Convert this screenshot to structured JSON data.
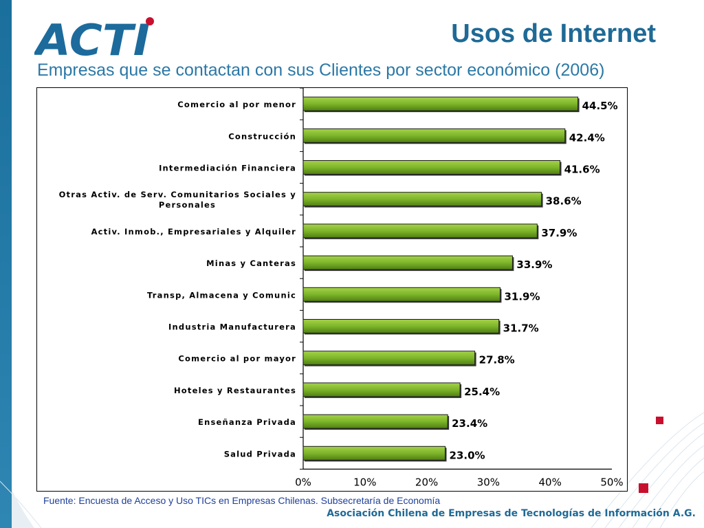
{
  "slide": {
    "logo_text": "ACTI",
    "title": "Usos de Internet",
    "subtitle": "Empresas que se contactan con sus Clientes por sector económico (2006)",
    "source": "Fuente: Encuesta de Acceso y Uso TICs en Empresas Chilenas. Subsecretaría de Economía",
    "footer": "Asociación Chilena de Empresas de Tecnologías de Información A.G.",
    "colors": {
      "brand_blue": "#1f6a96",
      "bar_green": "#7db52a",
      "accent_red": "#c8102e"
    }
  },
  "chart_data": {
    "type": "bar",
    "orientation": "horizontal",
    "categories": [
      "Comercio al por menor",
      "Construcción",
      "Intermediación Financiera",
      "Otras Activ. de Serv. Comunitarios Sociales y Personales",
      "Activ. Inmob., Empresariales y Alquiler",
      "Minas y Canteras",
      "Transp, Almacena y Comunic",
      "Industria Manufacturera",
      "Comercio al por mayor",
      "Hoteles y Restaurantes",
      "Enseñanza Privada",
      "Salud Privada"
    ],
    "values": [
      44.5,
      42.4,
      41.6,
      38.6,
      37.9,
      33.9,
      31.9,
      31.7,
      27.8,
      25.4,
      23.4,
      23.0
    ],
    "data_labels": [
      "44.5%",
      "42.4%",
      "41.6%",
      "38.6%",
      "37.9%",
      "33.9%",
      "31.9%",
      "31.7%",
      "27.8%",
      "25.4%",
      "23.4%",
      "23.0%"
    ],
    "x_ticks": [
      "0%",
      "10%",
      "20%",
      "30%",
      "40%",
      "50%"
    ],
    "xlim": [
      0,
      50
    ],
    "grid": false,
    "legend": "none"
  }
}
